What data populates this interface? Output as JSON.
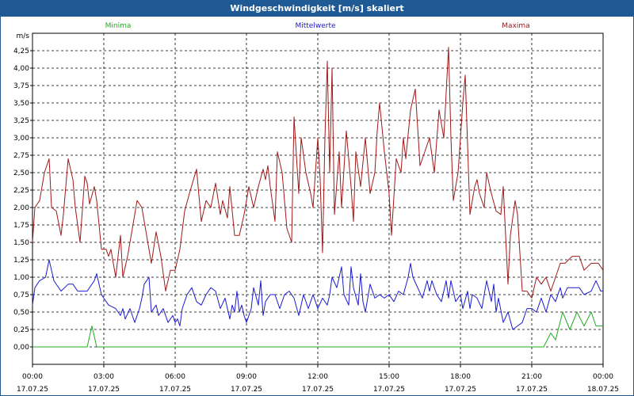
{
  "window": {
    "title": "Windgeschwindigkeit [m/s] skaliert"
  },
  "chart_data": {
    "type": "line",
    "title": "Windgeschwindigkeit [m/s] skaliert",
    "ylabel": "m/s",
    "ylim": [
      -0.25,
      4.5
    ],
    "grid": true,
    "legend_position": "top",
    "colors": {
      "Minima": "#22aa22",
      "Mittelwerte": "#1a1ad0",
      "Maxima": "#a01818"
    },
    "yticks": [
      "0,00",
      "0,25",
      "0,50",
      "0,75",
      "1,00",
      "1,25",
      "1,50",
      "1,75",
      "2,00",
      "2,25",
      "2,50",
      "2,75",
      "3,00",
      "3,25",
      "3,50",
      "3,75",
      "4,00",
      "4,25"
    ],
    "xticks": [
      {
        "time": "00:00",
        "date": "17.07.25"
      },
      {
        "time": "03:00",
        "date": "17.07.25"
      },
      {
        "time": "06:00",
        "date": "17.07.25"
      },
      {
        "time": "09:00",
        "date": "17.07.25"
      },
      {
        "time": "12:00",
        "date": "17.07.25"
      },
      {
        "time": "15:00",
        "date": "17.07.25"
      },
      {
        "time": "18:00",
        "date": "17.07.25"
      },
      {
        "time": "21:00",
        "date": "17.07.25"
      },
      {
        "time": "00:00",
        "date": "18.07.25"
      }
    ],
    "series": [
      {
        "name": "Minima",
        "points": [
          [
            0,
            0
          ],
          [
            2.3,
            0
          ],
          [
            2.5,
            0.3
          ],
          [
            2.7,
            0
          ],
          [
            3,
            0
          ],
          [
            6,
            0
          ],
          [
            12,
            0
          ],
          [
            18,
            0
          ],
          [
            21.5,
            0
          ],
          [
            21.8,
            0.2
          ],
          [
            22,
            0.1
          ],
          [
            22.3,
            0.5
          ],
          [
            22.6,
            0.25
          ],
          [
            22.9,
            0.5
          ],
          [
            23.2,
            0.3
          ],
          [
            23.5,
            0.5
          ],
          [
            23.7,
            0.3
          ],
          [
            24,
            0.3
          ]
        ]
      },
      {
        "name": "Mittelwerte",
        "points": [
          [
            0,
            0.6
          ],
          [
            0.1,
            0.85
          ],
          [
            0.3,
            0.95
          ],
          [
            0.55,
            1.0
          ],
          [
            0.7,
            1.25
          ],
          [
            0.9,
            0.95
          ],
          [
            1.2,
            0.8
          ],
          [
            1.5,
            0.9
          ],
          [
            1.7,
            0.9
          ],
          [
            1.9,
            0.8
          ],
          [
            2.3,
            0.8
          ],
          [
            2.6,
            0.95
          ],
          [
            2.7,
            1.05
          ],
          [
            2.9,
            0.75
          ],
          [
            3.2,
            0.6
          ],
          [
            3.5,
            0.55
          ],
          [
            3.7,
            0.45
          ],
          [
            3.8,
            0.55
          ],
          [
            3.9,
            0.4
          ],
          [
            4.1,
            0.55
          ],
          [
            4.3,
            0.35
          ],
          [
            4.5,
            0.55
          ],
          [
            4.6,
            0.7
          ],
          [
            4.7,
            0.9
          ],
          [
            4.9,
            1.0
          ],
          [
            5.0,
            0.5
          ],
          [
            5.2,
            0.6
          ],
          [
            5.3,
            0.45
          ],
          [
            5.5,
            0.55
          ],
          [
            5.7,
            0.35
          ],
          [
            5.9,
            0.45
          ],
          [
            6.0,
            0.35
          ],
          [
            6.1,
            0.4
          ],
          [
            6.2,
            0.3
          ],
          [
            6.3,
            0.55
          ],
          [
            6.5,
            0.75
          ],
          [
            6.7,
            0.85
          ],
          [
            6.9,
            0.65
          ],
          [
            7.1,
            0.6
          ],
          [
            7.3,
            0.75
          ],
          [
            7.5,
            0.85
          ],
          [
            7.7,
            0.8
          ],
          [
            7.9,
            0.55
          ],
          [
            8.1,
            0.7
          ],
          [
            8.3,
            0.4
          ],
          [
            8.4,
            0.6
          ],
          [
            8.5,
            0.5
          ],
          [
            8.6,
            0.8
          ],
          [
            8.7,
            0.5
          ],
          [
            8.8,
            0.6
          ],
          [
            8.9,
            0.45
          ],
          [
            9.0,
            0.35
          ],
          [
            9.2,
            0.55
          ],
          [
            9.3,
            0.85
          ],
          [
            9.5,
            0.6
          ],
          [
            9.6,
            0.95
          ],
          [
            9.7,
            0.45
          ],
          [
            9.8,
            0.65
          ],
          [
            10.0,
            0.75
          ],
          [
            10.2,
            0.75
          ],
          [
            10.4,
            0.55
          ],
          [
            10.6,
            0.75
          ],
          [
            10.8,
            0.8
          ],
          [
            11.0,
            0.7
          ],
          [
            11.2,
            0.45
          ],
          [
            11.4,
            0.75
          ],
          [
            11.6,
            0.55
          ],
          [
            11.8,
            0.75
          ],
          [
            12.0,
            0.55
          ],
          [
            12.2,
            0.7
          ],
          [
            12.4,
            0.6
          ],
          [
            12.5,
            0.75
          ],
          [
            12.6,
            1.0
          ],
          [
            12.8,
            0.85
          ],
          [
            13.0,
            1.15
          ],
          [
            13.1,
            0.75
          ],
          [
            13.3,
            0.6
          ],
          [
            13.4,
            1.15
          ],
          [
            13.5,
            0.85
          ],
          [
            13.7,
            0.6
          ],
          [
            13.8,
            1.05
          ],
          [
            13.9,
            0.65
          ],
          [
            14.0,
            0.5
          ],
          [
            14.2,
            0.9
          ],
          [
            14.4,
            0.7
          ],
          [
            14.6,
            0.75
          ],
          [
            14.8,
            0.7
          ],
          [
            15.0,
            0.75
          ],
          [
            15.2,
            0.65
          ],
          [
            15.4,
            0.8
          ],
          [
            15.6,
            0.75
          ],
          [
            15.8,
            1.0
          ],
          [
            15.9,
            1.2
          ],
          [
            16.0,
            1.0
          ],
          [
            16.2,
            0.85
          ],
          [
            16.4,
            0.7
          ],
          [
            16.6,
            0.95
          ],
          [
            16.7,
            0.8
          ],
          [
            16.8,
            0.95
          ],
          [
            17.0,
            0.75
          ],
          [
            17.2,
            0.65
          ],
          [
            17.4,
            0.95
          ],
          [
            17.5,
            0.7
          ],
          [
            17.6,
            0.95
          ],
          [
            17.8,
            0.65
          ],
          [
            18.0,
            0.75
          ],
          [
            18.1,
            0.55
          ],
          [
            18.3,
            0.8
          ],
          [
            18.4,
            0.55
          ],
          [
            18.5,
            0.75
          ],
          [
            18.7,
            0.7
          ],
          [
            18.9,
            0.55
          ],
          [
            19.1,
            0.95
          ],
          [
            19.3,
            0.65
          ],
          [
            19.4,
            0.9
          ],
          [
            19.5,
            0.5
          ],
          [
            19.6,
            0.7
          ],
          [
            19.8,
            0.35
          ],
          [
            20.0,
            0.5
          ],
          [
            20.2,
            0.25
          ],
          [
            20.4,
            0.3
          ],
          [
            20.6,
            0.35
          ],
          [
            20.8,
            0.55
          ],
          [
            21.0,
            0.55
          ],
          [
            21.2,
            0.5
          ],
          [
            21.4,
            0.7
          ],
          [
            21.6,
            0.5
          ],
          [
            21.8,
            0.75
          ],
          [
            22.0,
            0.65
          ],
          [
            22.2,
            0.85
          ],
          [
            22.3,
            0.7
          ],
          [
            22.5,
            0.85
          ],
          [
            22.7,
            0.85
          ],
          [
            23.0,
            0.85
          ],
          [
            23.2,
            0.75
          ],
          [
            23.5,
            0.8
          ],
          [
            23.7,
            0.95
          ],
          [
            23.9,
            0.8
          ],
          [
            24,
            0.8
          ]
        ]
      },
      {
        "name": "Maxima",
        "points": [
          [
            0,
            1.5
          ],
          [
            0.1,
            2.0
          ],
          [
            0.3,
            2.1
          ],
          [
            0.5,
            2.5
          ],
          [
            0.7,
            2.7
          ],
          [
            0.8,
            2.0
          ],
          [
            1.0,
            1.95
          ],
          [
            1.2,
            1.6
          ],
          [
            1.3,
            1.9
          ],
          [
            1.5,
            2.7
          ],
          [
            1.7,
            2.4
          ],
          [
            1.8,
            2.0
          ],
          [
            2.0,
            1.5
          ],
          [
            2.2,
            2.45
          ],
          [
            2.3,
            2.35
          ],
          [
            2.4,
            2.05
          ],
          [
            2.6,
            2.3
          ],
          [
            2.7,
            2.1
          ],
          [
            2.9,
            1.4
          ],
          [
            3.1,
            1.4
          ],
          [
            3.2,
            1.3
          ],
          [
            3.3,
            1.4
          ],
          [
            3.5,
            1.0
          ],
          [
            3.7,
            1.6
          ],
          [
            3.8,
            1.0
          ],
          [
            4.0,
            1.3
          ],
          [
            4.2,
            1.7
          ],
          [
            4.4,
            2.1
          ],
          [
            4.6,
            2.0
          ],
          [
            4.8,
            1.6
          ],
          [
            5.0,
            1.2
          ],
          [
            5.2,
            1.65
          ],
          [
            5.4,
            1.3
          ],
          [
            5.6,
            0.8
          ],
          [
            5.8,
            1.1
          ],
          [
            6.0,
            1.1
          ],
          [
            6.2,
            1.4
          ],
          [
            6.4,
            1.95
          ],
          [
            6.6,
            2.2
          ],
          [
            6.9,
            2.55
          ],
          [
            7.1,
            1.8
          ],
          [
            7.3,
            2.1
          ],
          [
            7.5,
            2.0
          ],
          [
            7.7,
            2.35
          ],
          [
            7.9,
            1.9
          ],
          [
            8.0,
            2.1
          ],
          [
            8.2,
            1.85
          ],
          [
            8.3,
            2.3
          ],
          [
            8.5,
            1.6
          ],
          [
            8.7,
            1.6
          ],
          [
            8.9,
            1.9
          ],
          [
            9.1,
            2.3
          ],
          [
            9.3,
            2.0
          ],
          [
            9.5,
            2.3
          ],
          [
            9.7,
            2.55
          ],
          [
            9.8,
            2.4
          ],
          [
            9.9,
            2.6
          ],
          [
            10.0,
            2.3
          ],
          [
            10.2,
            1.8
          ],
          [
            10.3,
            2.8
          ],
          [
            10.5,
            2.5
          ],
          [
            10.7,
            1.7
          ],
          [
            10.9,
            1.5
          ],
          [
            11.0,
            3.3
          ],
          [
            11.2,
            2.2
          ],
          [
            11.3,
            3.0
          ],
          [
            11.5,
            2.5
          ],
          [
            11.7,
            2.2
          ],
          [
            11.8,
            2.0
          ],
          [
            12.0,
            3.0
          ],
          [
            12.1,
            2.4
          ],
          [
            12.2,
            1.35
          ],
          [
            12.3,
            3.0
          ],
          [
            12.4,
            4.1
          ],
          [
            12.5,
            2.5
          ],
          [
            12.6,
            4.0
          ],
          [
            12.7,
            1.9
          ],
          [
            12.9,
            2.8
          ],
          [
            13.0,
            2.0
          ],
          [
            13.2,
            3.1
          ],
          [
            13.4,
            2.3
          ],
          [
            13.5,
            1.8
          ],
          [
            13.6,
            2.8
          ],
          [
            13.8,
            2.3
          ],
          [
            14.0,
            3.0
          ],
          [
            14.2,
            2.2
          ],
          [
            14.4,
            2.5
          ],
          [
            14.5,
            3.1
          ],
          [
            14.6,
            3.5
          ],
          [
            14.8,
            2.8
          ],
          [
            15.0,
            2.2
          ],
          [
            15.1,
            1.6
          ],
          [
            15.3,
            2.7
          ],
          [
            15.5,
            2.5
          ],
          [
            15.6,
            3.0
          ],
          [
            15.7,
            2.7
          ],
          [
            15.9,
            3.4
          ],
          [
            16.1,
            3.7
          ],
          [
            16.3,
            2.6
          ],
          [
            16.5,
            2.8
          ],
          [
            16.7,
            3.0
          ],
          [
            16.9,
            2.5
          ],
          [
            17.1,
            3.4
          ],
          [
            17.3,
            3.0
          ],
          [
            17.5,
            4.3
          ],
          [
            17.6,
            3.0
          ],
          [
            17.7,
            2.1
          ],
          [
            17.9,
            2.5
          ],
          [
            18.1,
            3.5
          ],
          [
            18.2,
            3.9
          ],
          [
            18.4,
            1.9
          ],
          [
            18.6,
            2.3
          ],
          [
            18.7,
            2.4
          ],
          [
            18.8,
            2.2
          ],
          [
            19.0,
            2.0
          ],
          [
            19.1,
            2.5
          ],
          [
            19.3,
            2.2
          ],
          [
            19.5,
            1.95
          ],
          [
            19.7,
            1.9
          ],
          [
            19.8,
            2.3
          ],
          [
            20.0,
            0.9
          ],
          [
            20.1,
            1.6
          ],
          [
            20.3,
            2.1
          ],
          [
            20.4,
            1.9
          ],
          [
            20.6,
            0.8
          ],
          [
            20.8,
            0.8
          ],
          [
            21.0,
            0.7
          ],
          [
            21.2,
            1.0
          ],
          [
            21.4,
            0.9
          ],
          [
            21.6,
            1.0
          ],
          [
            21.8,
            0.8
          ],
          [
            22.0,
            1.0
          ],
          [
            22.2,
            1.2
          ],
          [
            22.4,
            1.2
          ],
          [
            22.7,
            1.3
          ],
          [
            23.0,
            1.3
          ],
          [
            23.2,
            1.1
          ],
          [
            23.5,
            1.2
          ],
          [
            23.8,
            1.2
          ],
          [
            24,
            1.1
          ]
        ]
      }
    ]
  }
}
